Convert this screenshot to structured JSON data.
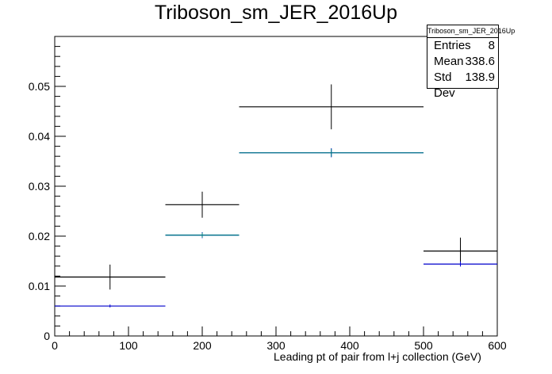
{
  "title": "Triboson_sm_JER_2016Up",
  "xlabel": "Leading pt of pair from l+j collection (GeV)",
  "stats": {
    "name": "Triboson_sm_JER_2016Up",
    "rows": [
      {
        "label": "Entries",
        "value": "8"
      },
      {
        "label": "Mean",
        "value": "338.6"
      },
      {
        "label": "Std Dev",
        "value": "138.9"
      }
    ]
  },
  "colors": {
    "main": "#000000",
    "blue": "#0000cc",
    "teal": "#008080"
  },
  "chart_data": {
    "type": "histogram",
    "xlim": [
      0,
      600
    ],
    "ylim": [
      0,
      0.06
    ],
    "xticks": [
      0,
      100,
      200,
      300,
      400,
      500,
      600
    ],
    "yticks": [
      0,
      0.01,
      0.02,
      0.03,
      0.04,
      0.05
    ],
    "ytick_labels": [
      "0",
      "0.01",
      "0.02",
      "0.03",
      "0.04",
      "0.05"
    ],
    "series": [
      {
        "color": "#000000",
        "bins": [
          {
            "x0": 0,
            "x1": 150,
            "y": 0.0118,
            "err": 0.0025
          },
          {
            "x0": 150,
            "x1": 250,
            "y": 0.0263,
            "err": 0.0026
          },
          {
            "x0": 250,
            "x1": 500,
            "y": 0.0459,
            "err": 0.0045
          },
          {
            "x0": 500,
            "x1": 600,
            "y": 0.017,
            "err": 0.0027
          }
        ]
      },
      {
        "color": "#0000cc",
        "bins": [
          {
            "x0": 0,
            "x1": 150,
            "y": 0.006,
            "err": 0.0003
          },
          {
            "x0": 150,
            "x1": 250,
            "y": 0.0202,
            "err": 0.0006
          },
          {
            "x0": 250,
            "x1": 500,
            "y": 0.0367,
            "err": 0.0009
          },
          {
            "x0": 500,
            "x1": 600,
            "y": 0.0144,
            "err": 0.0005
          }
        ]
      },
      {
        "color": "#008080",
        "bins": [
          {
            "x0": 150,
            "x1": 250,
            "y": 0.0202,
            "err": 0.0005
          },
          {
            "x0": 250,
            "x1": 500,
            "y": 0.0367,
            "err": 0.0008
          }
        ]
      }
    ]
  }
}
